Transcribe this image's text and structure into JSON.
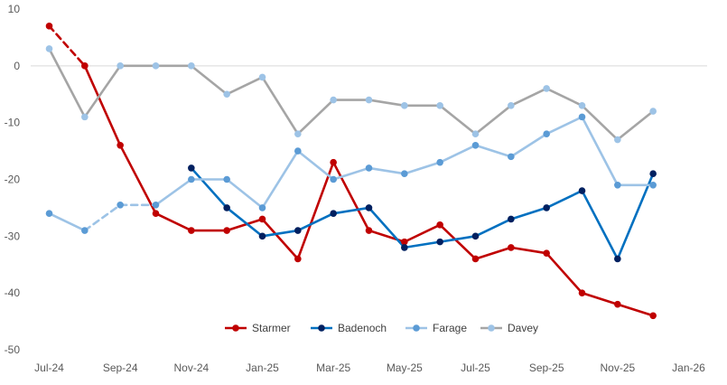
{
  "chart_data": {
    "type": "line",
    "title": "",
    "xlabel": "",
    "ylabel": "",
    "ylim": [
      -50,
      10
    ],
    "yticks": [
      10,
      0,
      -10,
      -20,
      -30,
      -40,
      -50
    ],
    "xlim": [
      "2024-07",
      "2026-01"
    ],
    "xtick_labels": [
      "Jul-24",
      "Sep-24",
      "Nov-24",
      "Jan-25",
      "Mar-25",
      "May-25",
      "Jul-25",
      "Sep-25",
      "Nov-25",
      "Jan-26"
    ],
    "x": [
      "2024-07",
      "2024-08",
      "2024-09",
      "2024-10",
      "2024-11",
      "2024-12",
      "2025-01",
      "2025-02",
      "2025-03",
      "2025-04",
      "2025-05",
      "2025-06",
      "2025-07",
      "2025-08",
      "2025-09",
      "2025-10",
      "2025-11",
      "2025-12"
    ],
    "grid": false,
    "legend_position": "bottom",
    "series": [
      {
        "name": "Starmer",
        "line_color": "#c00000",
        "marker_color": "#c00000",
        "dashed_segments": [
          [
            0,
            1
          ]
        ],
        "values": [
          7,
          0,
          -14,
          -26,
          -29,
          -29,
          -27,
          -34,
          -17,
          -29,
          -31,
          -28,
          -34,
          -32,
          -33,
          -40,
          -42,
          -44
        ]
      },
      {
        "name": "Badenoch",
        "line_color": "#0070c0",
        "marker_color": "#002060",
        "dashed_segments": [],
        "values": [
          null,
          null,
          null,
          null,
          -18,
          -25,
          -30,
          -29,
          -26,
          -25,
          -32,
          -31,
          -30,
          -27,
          -25,
          -22,
          -34,
          -19
        ]
      },
      {
        "name": "Farage",
        "line_color": "#9dc3e6",
        "marker_color": "#5b9bd5",
        "dashed_segments": [
          [
            1,
            2
          ],
          [
            2,
            3
          ]
        ],
        "values": [
          -26,
          -29,
          -24.5,
          -24.5,
          -20,
          -20,
          -25,
          -15,
          -20,
          -18,
          -19,
          -17,
          -14,
          -16,
          -12,
          -9,
          -21,
          -21
        ]
      },
      {
        "name": "Davey",
        "line_color": "#a5a5a5",
        "marker_color": "#9dc3e6",
        "dashed_segments": [],
        "values": [
          3,
          -9,
          0,
          0,
          0,
          -5,
          -2,
          -12,
          -6,
          -6,
          -7,
          -7,
          -12,
          -7,
          -4,
          -7,
          -13,
          -8
        ]
      }
    ]
  }
}
